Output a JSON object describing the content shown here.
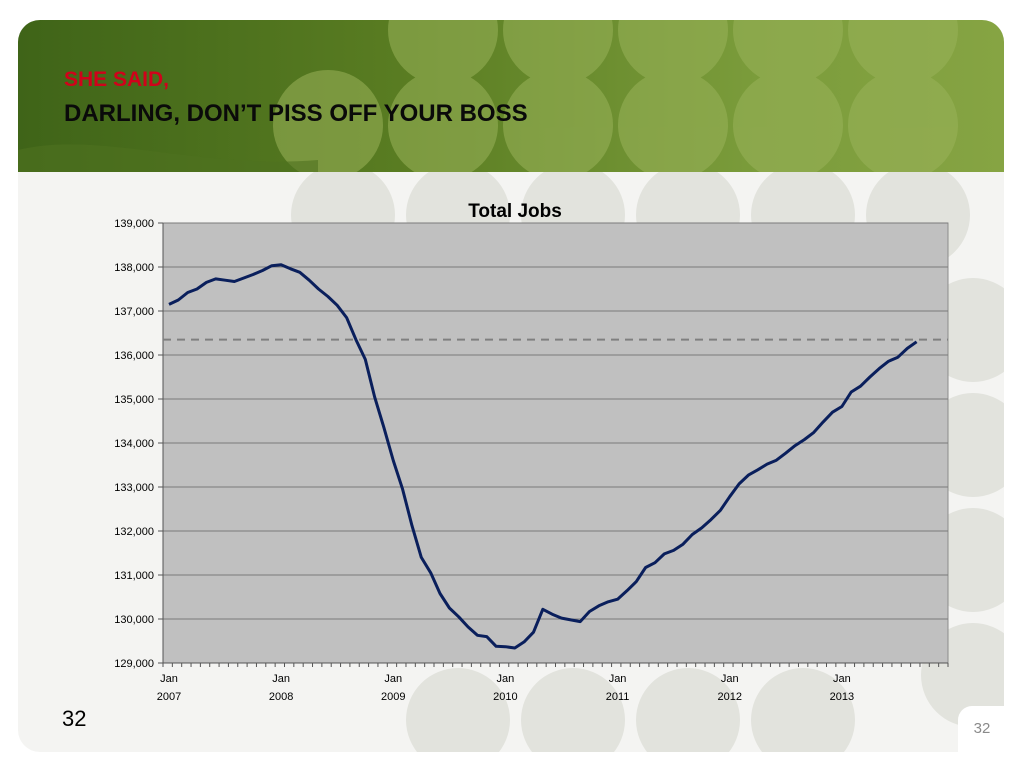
{
  "slide": {
    "title_line1": "SHE SAID,",
    "title_line2": "DARLING, DON’T PISS OFF YOUR BOSS",
    "page_number_left": "32",
    "page_number_right": "32",
    "colors": {
      "header_green": "#5a7d22",
      "title_red": "#d0021b",
      "line": "#0a1f5c",
      "plot_bg": "#c0c0c0",
      "reference_line": "#7f7f7f"
    }
  },
  "chart_data": {
    "type": "line",
    "title": "Total Jobs",
    "xlabel": "",
    "ylabel": "",
    "ylim": [
      129000,
      139000
    ],
    "y_ticks": [
      129000,
      130000,
      131000,
      132000,
      133000,
      134000,
      135000,
      136000,
      137000,
      138000,
      139000
    ],
    "y_tick_labels": [
      "129,000",
      "130,000",
      "131,000",
      "132,000",
      "133,000",
      "134,000",
      "135,000",
      "136,000",
      "137,000",
      "138,000",
      "139,000"
    ],
    "x_tick_labels": [
      {
        "month": "Jan",
        "year": "2007",
        "index": 0
      },
      {
        "month": "Jan",
        "year": "2008",
        "index": 12
      },
      {
        "month": "Jan",
        "year": "2009",
        "index": 24
      },
      {
        "month": "Jan",
        "year": "2010",
        "index": 36
      },
      {
        "month": "Jan",
        "year": "2011",
        "index": 48
      },
      {
        "month": "Jan",
        "year": "2012",
        "index": 60
      },
      {
        "month": "Jan",
        "year": "2013",
        "index": 72
      }
    ],
    "x_months_span": 84,
    "reference_line": 136350,
    "grid": true,
    "legend": "none",
    "series": [
      {
        "start": "2007-01",
        "frequency": "monthly",
        "values": [
          137150,
          137250,
          137420,
          137500,
          137650,
          137730,
          137700,
          137670,
          137750,
          137830,
          137920,
          138030,
          138050,
          137960,
          137880,
          137700,
          137500,
          137330,
          137130,
          136850,
          136350,
          135900,
          135050,
          134350,
          133600,
          132950,
          132120,
          131400,
          131050,
          130580,
          130250,
          130050,
          129820,
          129630,
          129600,
          129380,
          129370,
          129340,
          129480,
          129700,
          130220,
          130110,
          130020,
          129980,
          129940,
          130170,
          130300,
          130390,
          130450,
          130640,
          130850,
          131170,
          131280,
          131480,
          131560,
          131700,
          131920,
          132070,
          132260,
          132470,
          132780,
          133070,
          133270,
          133390,
          133520,
          133610,
          133770,
          133940,
          134080,
          134240,
          134480,
          134700,
          134830,
          135160,
          135290,
          135500,
          135690,
          135860,
          135950,
          136150,
          136300
        ]
      }
    ]
  }
}
